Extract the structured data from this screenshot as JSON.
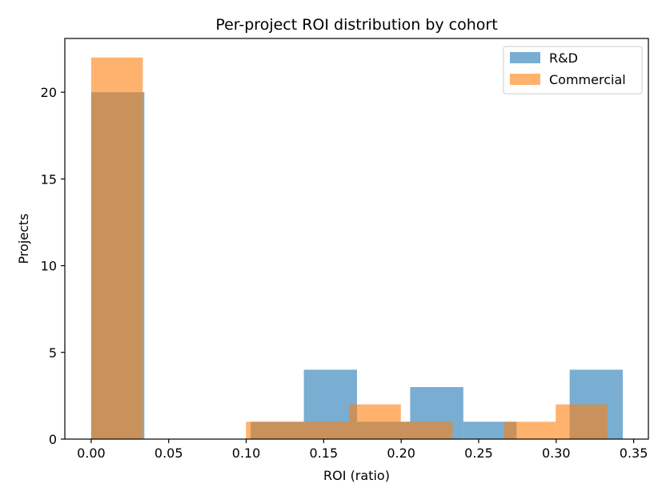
{
  "chart_data": {
    "type": "bar",
    "title": "Per-project ROI distribution by cohort",
    "xlabel": "ROI (ratio)",
    "ylabel": "Projects",
    "xlim": [
      -0.017,
      0.3595
    ],
    "ylim": [
      0,
      23.1
    ],
    "xticks": [
      "0.00",
      "0.05",
      "0.10",
      "0.15",
      "0.20",
      "0.25",
      "0.30",
      "0.35"
    ],
    "xtick_values": [
      0,
      0.05,
      0.1,
      0.15,
      0.2,
      0.25,
      0.3,
      0.35
    ],
    "yticks": [
      "0",
      "5",
      "10",
      "15",
      "20"
    ],
    "ytick_values": [
      0,
      5,
      10,
      15,
      20
    ],
    "grid": false,
    "legend_position": "top-right",
    "bar_alpha": 0.6,
    "series": [
      {
        "name": "R&D",
        "color": "#1f77b4",
        "bins": [
          {
            "x0": 0.0,
            "x1": 0.0343,
            "count": 20
          },
          {
            "x0": 0.0343,
            "x1": 0.0686,
            "count": 0
          },
          {
            "x0": 0.0686,
            "x1": 0.1029,
            "count": 0
          },
          {
            "x0": 0.1029,
            "x1": 0.1372,
            "count": 1
          },
          {
            "x0": 0.1372,
            "x1": 0.1715,
            "count": 4
          },
          {
            "x0": 0.1715,
            "x1": 0.2058,
            "count": 1
          },
          {
            "x0": 0.2058,
            "x1": 0.2401,
            "count": 3
          },
          {
            "x0": 0.2401,
            "x1": 0.2744,
            "count": 1
          },
          {
            "x0": 0.2744,
            "x1": 0.3087,
            "count": 0
          },
          {
            "x0": 0.3087,
            "x1": 0.343,
            "count": 4
          }
        ]
      },
      {
        "name": "Commercial",
        "color": "#ff7f0e",
        "bins": [
          {
            "x0": 0.0,
            "x1": 0.0333,
            "count": 22
          },
          {
            "x0": 0.0333,
            "x1": 0.0666,
            "count": 0
          },
          {
            "x0": 0.0666,
            "x1": 0.0999,
            "count": 0
          },
          {
            "x0": 0.0999,
            "x1": 0.1332,
            "count": 1
          },
          {
            "x0": 0.1332,
            "x1": 0.1665,
            "count": 1
          },
          {
            "x0": 0.1665,
            "x1": 0.1998,
            "count": 2
          },
          {
            "x0": 0.1998,
            "x1": 0.2331,
            "count": 1
          },
          {
            "x0": 0.2331,
            "x1": 0.2664,
            "count": 0
          },
          {
            "x0": 0.2664,
            "x1": 0.2997,
            "count": 1
          },
          {
            "x0": 0.2997,
            "x1": 0.333,
            "count": 2
          }
        ]
      }
    ]
  }
}
